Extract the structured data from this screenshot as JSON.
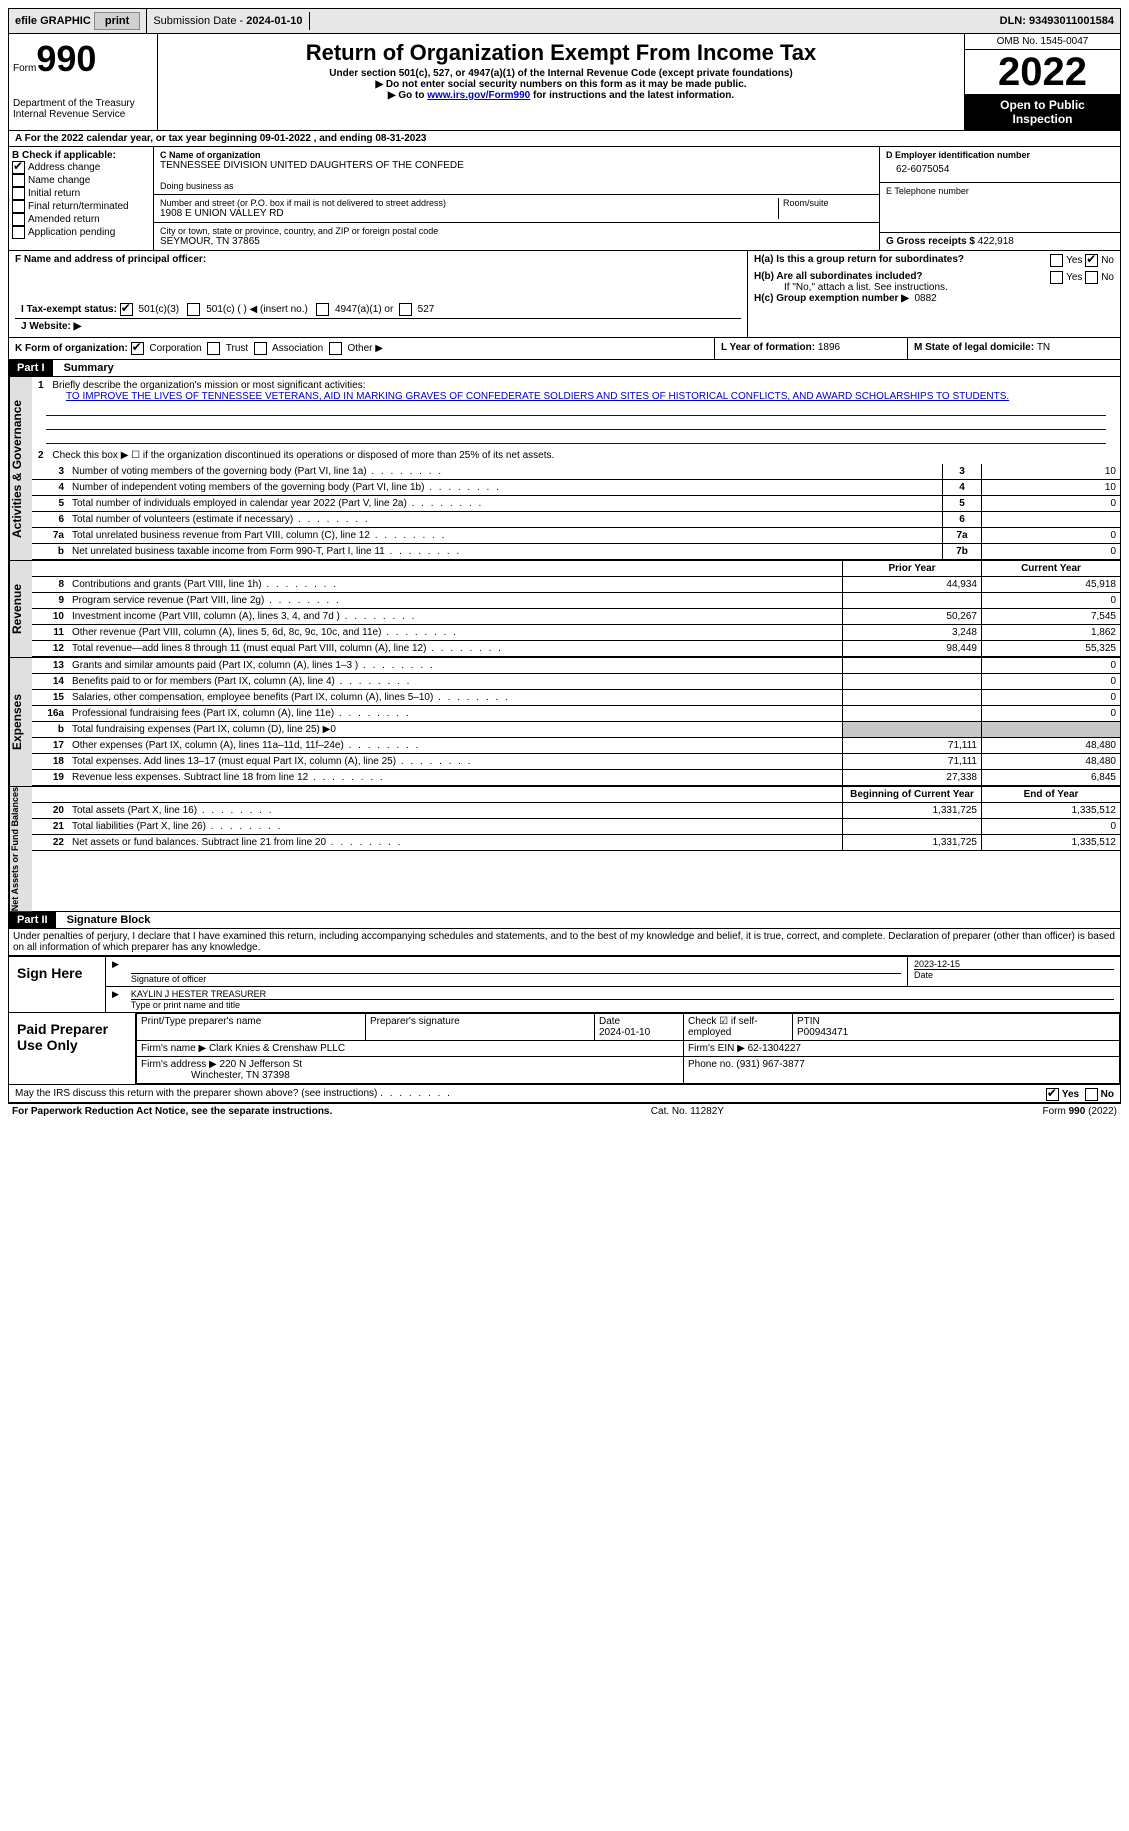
{
  "top_bar": {
    "efile": "efile GRAPHIC",
    "print": "print",
    "sub_date_label": "Submission Date - ",
    "sub_date": "2024-01-10",
    "dln_label": "DLN: ",
    "dln": "93493011001584"
  },
  "header": {
    "form_label": "Form",
    "form_number": "990",
    "dept": "Department of the Treasury",
    "irs": "Internal Revenue Service",
    "title": "Return of Organization Exempt From Income Tax",
    "sub1": "Under section 501(c), 527, or 4947(a)(1) of the Internal Revenue Code (except private foundations)",
    "sub2": "▶ Do not enter social security numbers on this form as it may be made public.",
    "sub3_pre": "▶ Go to ",
    "sub3_link": "www.irs.gov/Form990",
    "sub3_post": " for instructions and the latest information.",
    "omb": "OMB No. 1545-0047",
    "year": "2022",
    "public1": "Open to Public",
    "public2": "Inspection"
  },
  "row_a": {
    "text": "A For the 2022 calendar year, or tax year beginning 09-01-2022    , and ending 08-31-2023"
  },
  "col_b": {
    "header": "B Check if applicable:",
    "items": [
      {
        "label": "Address change",
        "checked": true
      },
      {
        "label": "Name change",
        "checked": false
      },
      {
        "label": "Initial return",
        "checked": false
      },
      {
        "label": "Final return/terminated",
        "checked": false
      },
      {
        "label": "Amended return",
        "checked": false
      },
      {
        "label": "Application pending",
        "checked": false
      }
    ]
  },
  "col_c": {
    "name_label": "C Name of organization",
    "name": "TENNESSEE DIVISION UNITED DAUGHTERS OF THE CONFEDE",
    "dba_label": "Doing business as",
    "dba": "",
    "street_label": "Number and street (or P.O. box if mail is not delivered to street address)",
    "street": "1908 E UNION VALLEY RD",
    "room_label": "Room/suite",
    "city_label": "City or town, state or province, country, and ZIP or foreign postal code",
    "city": "SEYMOUR, TN  37865"
  },
  "col_d": {
    "ein_label": "D Employer identification number",
    "ein": "62-6075054",
    "tel_label": "E Telephone number",
    "tel": "",
    "gross_label": "G Gross receipts $ ",
    "gross": "422,918"
  },
  "section_f": {
    "f_label": "F Name and address of principal officer:",
    "ha_label": "H(a)  Is this a group return for subordinates?",
    "ha_yes": "Yes",
    "ha_no": "No",
    "ha_checked": "No",
    "hb_label": "H(b)  Are all subordinates included?",
    "hb_yes": "Yes",
    "hb_no": "No",
    "hb_note": "If \"No,\" attach a list. See instructions.",
    "hc_label": "H(c)  Group exemption number ▶",
    "hc_val": "0882",
    "i_label": "I  Tax-exempt status:",
    "i_501c3": "501(c)(3)",
    "i_501c": "501(c) (  ) ◀ (insert no.)",
    "i_4947": "4947(a)(1) or",
    "i_527": "527",
    "j_label": "J  Website: ▶"
  },
  "row_k": {
    "k_label": "K Form of organization:",
    "k_corp": "Corporation",
    "k_trust": "Trust",
    "k_assoc": "Association",
    "k_other": "Other ▶",
    "l_label": "L Year of formation: ",
    "l_val": "1896",
    "m_label": "M State of legal domicile: ",
    "m_val": "TN"
  },
  "part1": {
    "label": "Part I",
    "title": "Summary",
    "q1": "Briefly describe the organization's mission or most significant activities:",
    "mission": "TO IMPROVE THE LIVES OF TENNESSEE VETERANS, AID IN MARKING GRAVES OF CONFEDERATE SOLDIERS AND SITES OF HISTORICAL CONFLICTS, AND AWARD SCHOLARSHIPS TO STUDENTS.",
    "q2": "Check this box ▶ ☐  if the organization discontinued its operations or disposed of more than 25% of its net assets.",
    "vert_activities": "Activities & Governance",
    "vert_revenue": "Revenue",
    "vert_expenses": "Expenses",
    "vert_net": "Net Assets or Fund Balances"
  },
  "lines_gov": [
    {
      "n": "3",
      "t": "Number of voting members of the governing body (Part VI, line 1a)",
      "box": "3",
      "v": "10"
    },
    {
      "n": "4",
      "t": "Number of independent voting members of the governing body (Part VI, line 1b)",
      "box": "4",
      "v": "10"
    },
    {
      "n": "5",
      "t": "Total number of individuals employed in calendar year 2022 (Part V, line 2a)",
      "box": "5",
      "v": "0"
    },
    {
      "n": "6",
      "t": "Total number of volunteers (estimate if necessary)",
      "box": "6",
      "v": ""
    },
    {
      "n": "7a",
      "t": "Total unrelated business revenue from Part VIII, column (C), line 12",
      "box": "7a",
      "v": "0"
    },
    {
      "n": "b",
      "t": "Net unrelated business taxable income from Form 990-T, Part I, line 11",
      "box": "7b",
      "v": "0"
    }
  ],
  "col_headers": {
    "prior": "Prior Year",
    "current": "Current Year",
    "begin": "Beginning of Current Year",
    "end": "End of Year"
  },
  "lines_rev": [
    {
      "n": "8",
      "t": "Contributions and grants (Part VIII, line 1h)",
      "p": "44,934",
      "c": "45,918"
    },
    {
      "n": "9",
      "t": "Program service revenue (Part VIII, line 2g)",
      "p": "",
      "c": "0"
    },
    {
      "n": "10",
      "t": "Investment income (Part VIII, column (A), lines 3, 4, and 7d )",
      "p": "50,267",
      "c": "7,545"
    },
    {
      "n": "11",
      "t": "Other revenue (Part VIII, column (A), lines 5, 6d, 8c, 9c, 10c, and 11e)",
      "p": "3,248",
      "c": "1,862"
    },
    {
      "n": "12",
      "t": "Total revenue—add lines 8 through 11 (must equal Part VIII, column (A), line 12)",
      "p": "98,449",
      "c": "55,325"
    }
  ],
  "lines_exp": [
    {
      "n": "13",
      "t": "Grants and similar amounts paid (Part IX, column (A), lines 1–3 )",
      "p": "",
      "c": "0"
    },
    {
      "n": "14",
      "t": "Benefits paid to or for members (Part IX, column (A), line 4)",
      "p": "",
      "c": "0"
    },
    {
      "n": "15",
      "t": "Salaries, other compensation, employee benefits (Part IX, column (A), lines 5–10)",
      "p": "",
      "c": "0"
    },
    {
      "n": "16a",
      "t": "Professional fundraising fees (Part IX, column (A), line 11e)",
      "p": "",
      "c": "0"
    },
    {
      "n": "b",
      "t": "Total fundraising expenses (Part IX, column (D), line 25) ▶0",
      "shaded": true
    },
    {
      "n": "17",
      "t": "Other expenses (Part IX, column (A), lines 11a–11d, 11f–24e)",
      "p": "71,111",
      "c": "48,480"
    },
    {
      "n": "18",
      "t": "Total expenses. Add lines 13–17 (must equal Part IX, column (A), line 25)",
      "p": "71,111",
      "c": "48,480"
    },
    {
      "n": "19",
      "t": "Revenue less expenses. Subtract line 18 from line 12",
      "p": "27,338",
      "c": "6,845"
    }
  ],
  "lines_net": [
    {
      "n": "20",
      "t": "Total assets (Part X, line 16)",
      "p": "1,331,725",
      "c": "1,335,512"
    },
    {
      "n": "21",
      "t": "Total liabilities (Part X, line 26)",
      "p": "",
      "c": "0"
    },
    {
      "n": "22",
      "t": "Net assets or fund balances. Subtract line 21 from line 20",
      "p": "1,331,725",
      "c": "1,335,512"
    }
  ],
  "part2": {
    "label": "Part II",
    "title": "Signature Block",
    "penalty": "Under penalties of perjury, I declare that I have examined this return, including accompanying schedules and statements, and to the best of my knowledge and belief, it is true, correct, and complete. Declaration of preparer (other than officer) is based on all information of which preparer has any knowledge."
  },
  "sign": {
    "here": "Sign Here",
    "sig_date": "2023-12-15",
    "sig_label": "Signature of officer",
    "date_label": "Date",
    "name": "KAYLIN J HESTER  TREASURER",
    "name_label": "Type or print name and title"
  },
  "preparer": {
    "label": "Paid Preparer Use Only",
    "h1": "Print/Type preparer's name",
    "h2": "Preparer's signature",
    "h3_label": "Date",
    "h3": "2024-01-10",
    "h4_label": "Check ☑ if self-employed",
    "h5_label": "PTIN",
    "h5": "P00943471",
    "firm_label": "Firm's name    ▶ ",
    "firm": "Clark Knies & Crenshaw PLLC",
    "ein_label": "Firm's EIN ▶ ",
    "ein": "62-1304227",
    "addr_label": "Firm's address ▶ ",
    "addr1": "220 N Jefferson St",
    "addr2": "Winchester, TN  37398",
    "phone_label": "Phone no. ",
    "phone": "(931) 967-3877"
  },
  "discuss": {
    "q": "May the IRS discuss this return with the preparer shown above? (see instructions)",
    "yes": "Yes",
    "no": "No"
  },
  "footer": {
    "left": "For Paperwork Reduction Act Notice, see the separate instructions.",
    "mid": "Cat. No. 11282Y",
    "right": "Form 990 (2022)"
  }
}
